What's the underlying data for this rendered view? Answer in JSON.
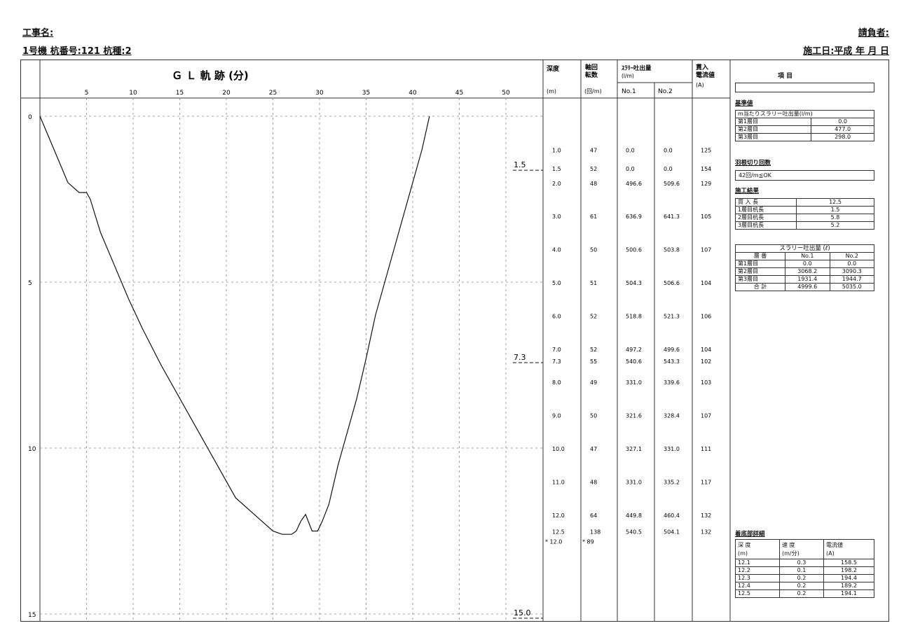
{
  "header": {
    "project_label": "工事名:",
    "machine_line": "1号機  杭番号:121  杭種:2",
    "contractor_label": "請負者:",
    "date_label": "施工日:平成 年 月 日"
  },
  "chart_data": {
    "type": "line",
    "title": "Ｇ Ｌ 軌 跡 (分)",
    "x_ticks": [
      5,
      10,
      15,
      20,
      25,
      30,
      35,
      40,
      45,
      50
    ],
    "y_ticks": [
      0,
      5,
      10,
      15
    ],
    "xlim": [
      0,
      54
    ],
    "ylim": [
      0,
      15
    ],
    "grid": true,
    "series": [
      {
        "x": [
          0.0,
          1.5,
          3.0,
          4.2,
          4.6,
          5.0,
          5.4,
          6.5,
          8.0,
          9.5,
          11.0,
          13.0,
          15.0,
          17.0,
          19.0,
          21.0,
          23.0,
          25.0,
          26.0,
          27.0,
          27.5,
          28.0,
          28.5,
          29.2,
          29.8,
          30.3,
          31.0,
          32.0,
          33.0,
          34.0,
          35.0,
          36.0,
          37.0,
          38.0,
          39.0,
          40.0,
          41.0,
          41.8
        ],
        "y": [
          0.0,
          1.0,
          2.0,
          2.3,
          2.3,
          2.3,
          2.5,
          3.5,
          4.5,
          5.5,
          6.4,
          7.5,
          8.5,
          9.5,
          10.5,
          11.5,
          12.0,
          12.5,
          12.6,
          12.6,
          12.5,
          12.2,
          12.0,
          12.5,
          12.5,
          12.2,
          11.7,
          10.5,
          9.5,
          8.5,
          7.3,
          6.0,
          5.0,
          4.0,
          3.0,
          2.0,
          1.0,
          0.0
        ]
      }
    ],
    "depth_markers": [
      "1.5",
      "7.3",
      "15.0"
    ]
  },
  "table": {
    "headers": {
      "depth": "深度",
      "depth_unit": "(m)",
      "rotations": "軸回\n転数",
      "rotations_unit": "(回/m)",
      "slurry": "ｽﾗﾘｰ吐出量",
      "slurry_unit": "(l/m)",
      "no1": "No.1",
      "no2": "No.2",
      "current": "貫入\n電流値",
      "current_unit": "(A)"
    },
    "rows": [
      {
        "depth": "1.0",
        "rot": "47",
        "n1": "0.0",
        "n2": "0.0",
        "amp": "125"
      },
      {
        "depth": "1.5",
        "rot": "52",
        "n1": "0.0",
        "n2": "0.0",
        "amp": "154"
      },
      {
        "depth": "2.0",
        "rot": "48",
        "n1": "496.6",
        "n2": "509.6",
        "amp": "129"
      },
      {
        "depth": "3.0",
        "rot": "61",
        "n1": "636.9",
        "n2": "641.3",
        "amp": "105"
      },
      {
        "depth": "4.0",
        "rot": "50",
        "n1": "500.6",
        "n2": "503.8",
        "amp": "107"
      },
      {
        "depth": "5.0",
        "rot": "51",
        "n1": "504.3",
        "n2": "506.6",
        "amp": "104"
      },
      {
        "depth": "6.0",
        "rot": "52",
        "n1": "518.8",
        "n2": "521.3",
        "amp": "106"
      },
      {
        "depth": "7.0",
        "rot": "52",
        "n1": "497.2",
        "n2": "499.6",
        "amp": "104"
      },
      {
        "depth": "7.3",
        "rot": "55",
        "n1": "540.6",
        "n2": "543.3",
        "amp": "102"
      },
      {
        "depth": "8.0",
        "rot": "49",
        "n1": "331.0",
        "n2": "339.6",
        "amp": "103"
      },
      {
        "depth": "9.0",
        "rot": "50",
        "n1": "321.6",
        "n2": "328.4",
        "amp": "107"
      },
      {
        "depth": "10.0",
        "rot": "47",
        "n1": "327.1",
        "n2": "331.0",
        "amp": "111"
      },
      {
        "depth": "11.0",
        "rot": "48",
        "n1": "331.0",
        "n2": "335.2",
        "amp": "117"
      },
      {
        "depth": "12.0",
        "rot": "64",
        "n1": "449.8",
        "n2": "460.4",
        "amp": "132"
      },
      {
        "depth": "12.5",
        "rot": "138",
        "n1": "540.5",
        "n2": "504.1",
        "amp": "132"
      },
      {
        "depth": "* 12.0",
        "rot": "* 89",
        "n1": "",
        "n2": "",
        "amp": ""
      }
    ]
  },
  "side": {
    "item_header": "項   目",
    "criteria_title": "基準値",
    "slurry_per_m": "m当たりスラリー吐出量(l/m)",
    "layers": [
      {
        "label": "第1層目",
        "value": "0.0"
      },
      {
        "label": "第2層目",
        "value": "477.0"
      },
      {
        "label": "第3層目",
        "value": "298.0"
      }
    ],
    "blade_title": "羽根切り回数",
    "blade_value": "42回/m≦OK",
    "result_title": "施工結果",
    "results": [
      {
        "label": "貫 入 長",
        "value": "12.5"
      },
      {
        "label": "1層目杭長",
        "value": "1.5"
      },
      {
        "label": "2層目杭長",
        "value": "5.8"
      },
      {
        "label": "3層目杭長",
        "value": "5.2"
      }
    ],
    "slurry_total_title": "スラリー吐出量 (ℓ)",
    "slurry_total_headers": [
      "層 番",
      "No.1",
      "No.2"
    ],
    "slurry_total_rows": [
      [
        "第1層目",
        "0.0",
        "0.0"
      ],
      [
        "第2層目",
        "3068.2",
        "3090.3"
      ],
      [
        "第3層目",
        "1931.4",
        "1944.7"
      ],
      [
        "合  計",
        "4999.6",
        "5035.0"
      ]
    ],
    "bottom_title": "着底部詳細",
    "bottom_headers": [
      "深 度\n(m)",
      "速 度\n(m/分)",
      "電流値\n(A)"
    ],
    "bottom_rows": [
      [
        "12.1",
        "0.3",
        "158.5"
      ],
      [
        "12.2",
        "0.1",
        "198.2"
      ],
      [
        "12.3",
        "0.2",
        "194.4"
      ],
      [
        "12.4",
        "0.2",
        "189.2"
      ],
      [
        "12.5",
        "0.2",
        "194.1"
      ]
    ]
  }
}
